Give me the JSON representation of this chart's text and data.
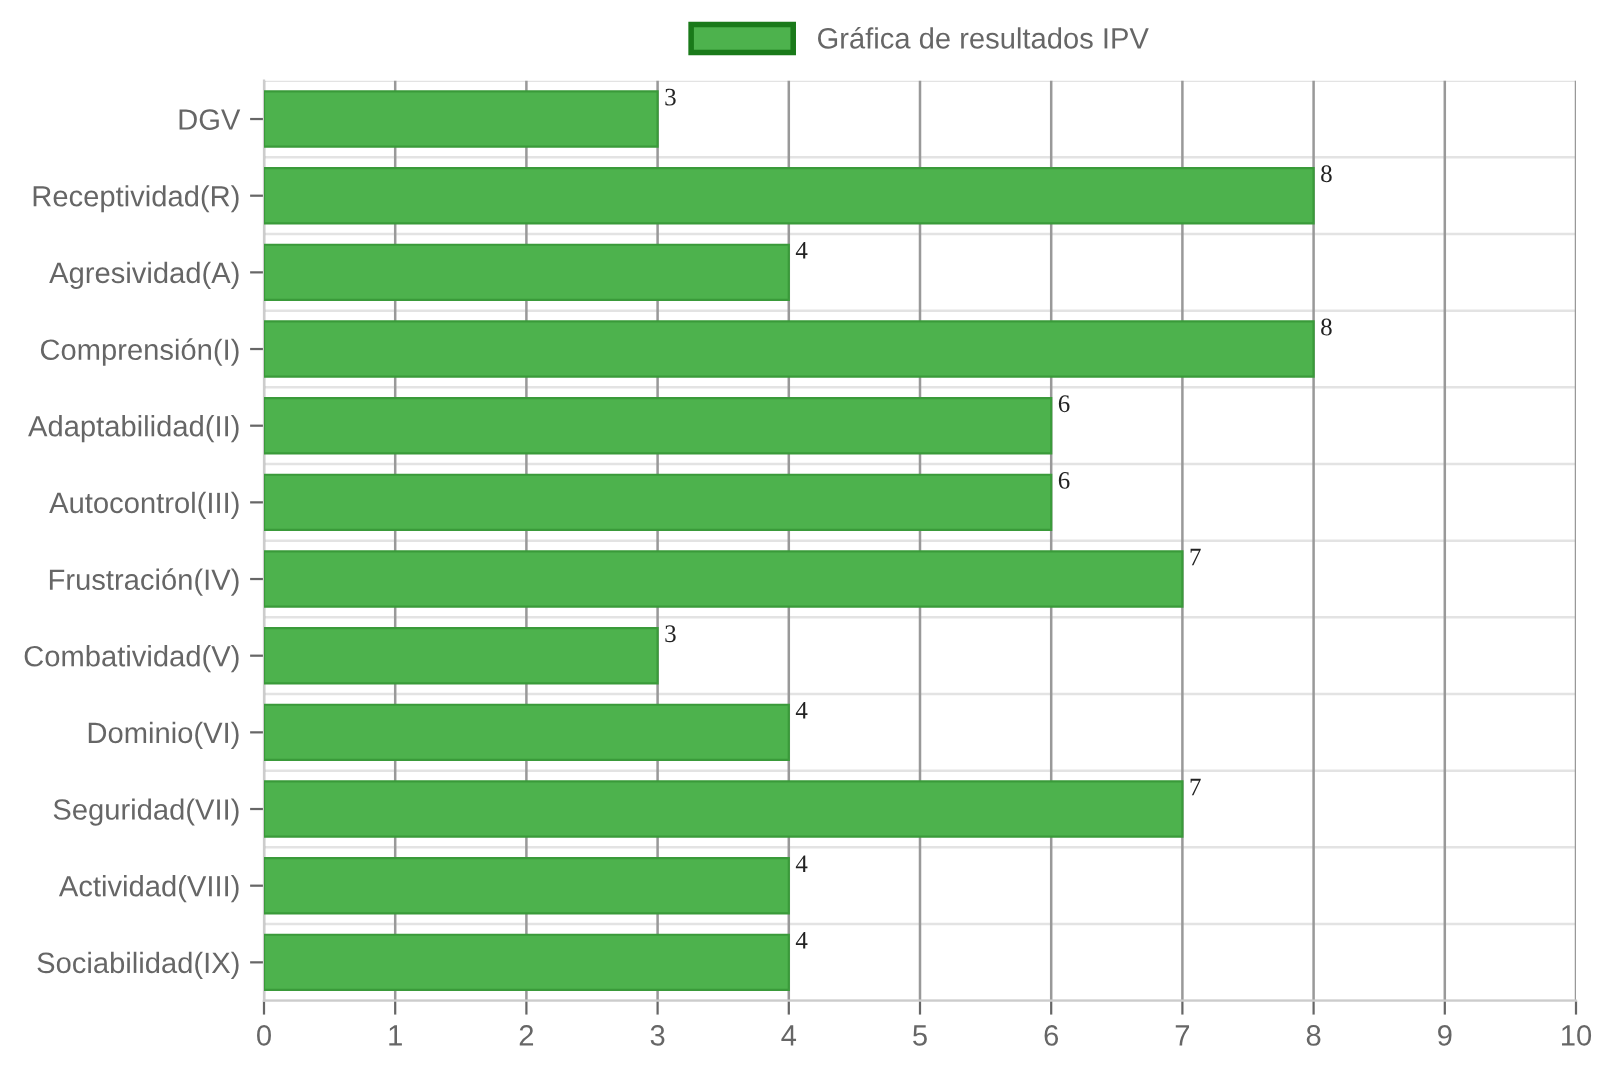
{
  "chart_data": {
    "type": "bar",
    "orientation": "horizontal",
    "categories": [
      "DGV",
      "Receptividad(R)",
      "Agresividad(A)",
      "Comprensión(I)",
      "Adaptabilidad(II)",
      "Autocontrol(III)",
      "Frustración(IV)",
      "Combatividad(V)",
      "Dominio(VI)",
      "Seguridad(VII)",
      "Actividad(VIII)",
      "Sociabilidad(IX)"
    ],
    "series": [
      {
        "name": "Gráfica de resultados IPV",
        "color": "#4db24d",
        "values": [
          3,
          8,
          4,
          8,
          6,
          6,
          7,
          3,
          4,
          7,
          4,
          4
        ]
      }
    ],
    "xlim": [
      0,
      10
    ],
    "xticks": [
      0,
      1,
      2,
      3,
      4,
      5,
      6,
      7,
      8,
      9,
      10
    ],
    "grid": true,
    "legend": "top",
    "data_labels": true
  }
}
